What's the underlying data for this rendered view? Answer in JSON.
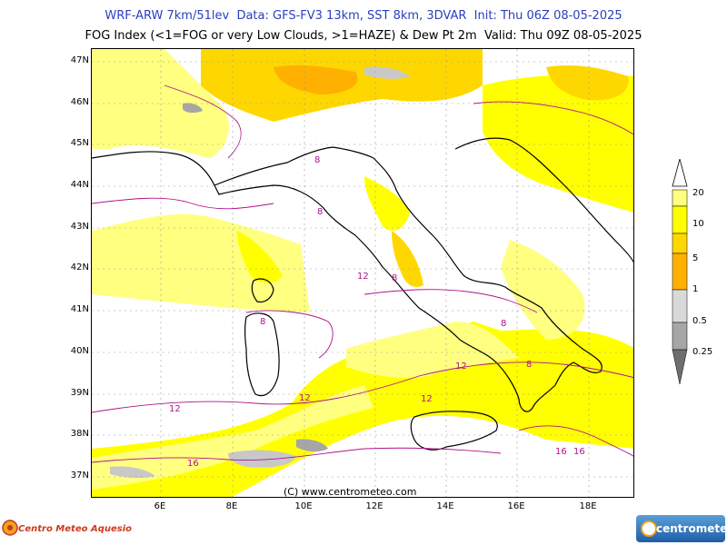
{
  "header": {
    "line1": "WRF-ARW 7km/51lev  Data: GFS-FV3 13km, SST 8km, 3DVAR  Init: Thu 06Z 08-05-2025",
    "line2": "FOG Index (<1=FOG or very Low Clouds, >1=HAZE) & Dew Pt 2m  Valid: Thu 09Z 08-05-2025"
  },
  "latitudes": [
    "47N",
    "46N",
    "45N",
    "44N",
    "43N",
    "42N",
    "41N",
    "40N",
    "39N",
    "38N",
    "37N"
  ],
  "longitudes": [
    "6E",
    "8E",
    "10E",
    "12E",
    "14E",
    "16E",
    "18E"
  ],
  "copyright": "(C) www.centrometeo.com",
  "legend": {
    "labels": [
      "20",
      "10",
      "5",
      "1",
      "0.5",
      "0.25"
    ],
    "colors": {
      "yellow_light": "#ffff80",
      "yellow": "#ffff00",
      "gold": "#ffd700",
      "orange": "#ffb000",
      "grey_light": "#d9d9d9",
      "grey": "#a6a6a6",
      "grey_dark": "#6e6e6e"
    }
  },
  "contour_labels": [
    "8",
    "8",
    "8",
    "8",
    "8",
    "8",
    "12",
    "12",
    "12",
    "12",
    "12",
    "16",
    "16",
    "16"
  ],
  "logos": {
    "left": "Centro Meteo Aquesio",
    "right": "centrometeo"
  }
}
